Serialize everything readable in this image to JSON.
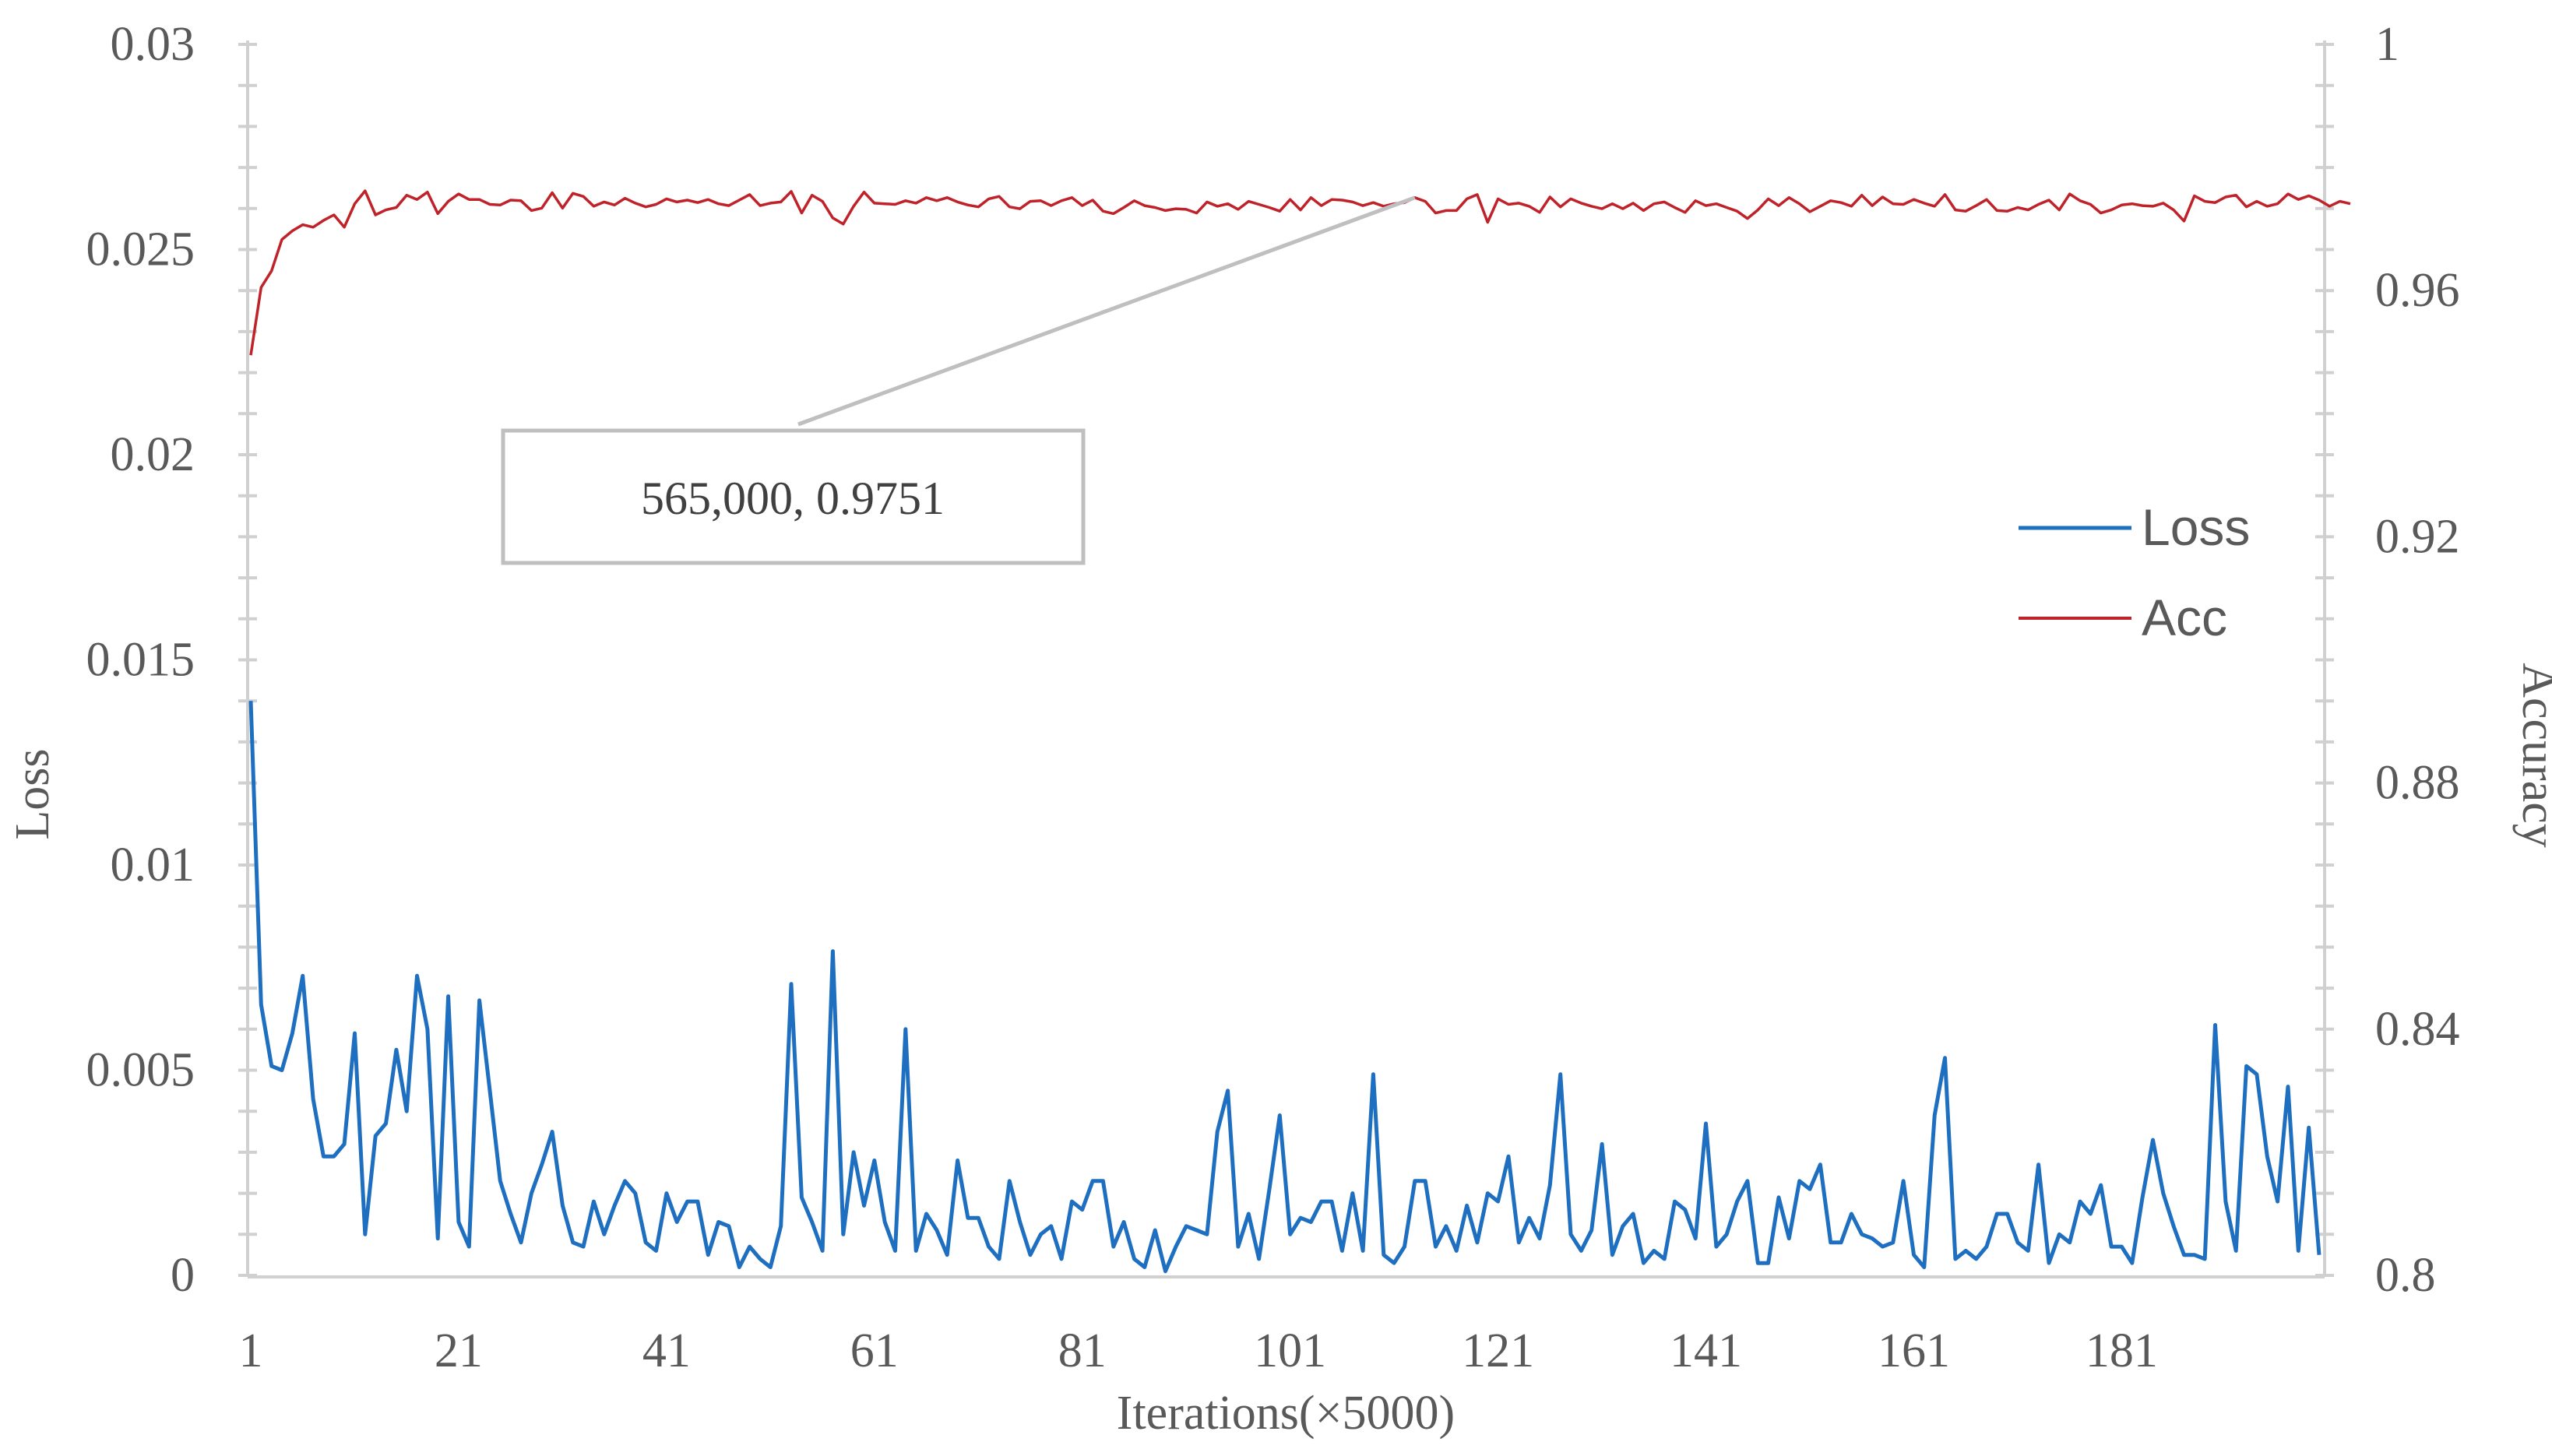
{
  "chart_data": {
    "type": "line",
    "xlabel": "Iterations(×5000)",
    "ylabel_left": "Loss",
    "ylabel_right": "Accuracy",
    "x_range": [
      1,
      200
    ],
    "x_ticks": [
      "1",
      "21",
      "41",
      "61",
      "81",
      "101",
      "121",
      "141",
      "161",
      "181"
    ],
    "ylim_left": [
      0,
      0.03
    ],
    "y_ticks_left": [
      "0",
      "0.005",
      "0.01",
      "0.015",
      "0.02",
      "0.025",
      "0.03"
    ],
    "ylim_right": [
      0.8,
      1.0
    ],
    "y_ticks_right": [
      "0.8",
      "0.84",
      "0.88",
      "0.92",
      "0.96",
      "1"
    ],
    "grid": false,
    "legend_position": "right",
    "annotation": {
      "text": "565,000, 0.9751",
      "x": 113,
      "y": 0.9751
    },
    "colors": {
      "Loss": "#1f6fc1",
      "Acc": "#c0222a"
    },
    "series": [
      {
        "name": "Loss",
        "axis": "left",
        "values": [
          0.014,
          0.0066,
          0.0051,
          0.005,
          0.0059,
          0.0073,
          0.0043,
          0.0029,
          0.0029,
          0.0032,
          0.0059,
          0.001,
          0.0034,
          0.0037,
          0.0055,
          0.004,
          0.0073,
          0.006,
          0.0009,
          0.0068,
          0.0013,
          0.0007,
          0.0067,
          0.0045,
          0.0023,
          0.0015,
          0.0008,
          0.002,
          0.0027,
          0.0035,
          0.0017,
          0.0008,
          0.0007,
          0.0018,
          0.001,
          0.0017,
          0.0023,
          0.002,
          0.0008,
          0.0006,
          0.002,
          0.0013,
          0.0018,
          0.0018,
          0.0005,
          0.0013,
          0.0012,
          0.0002,
          0.0007,
          0.0004,
          0.0002,
          0.0012,
          0.0071,
          0.0019,
          0.0013,
          0.0006,
          0.0079,
          0.001,
          0.003,
          0.0017,
          0.0028,
          0.0013,
          0.0006,
          0.006,
          0.0006,
          0.0015,
          0.0011,
          0.0005,
          0.0028,
          0.0014,
          0.0014,
          0.0007,
          0.0004,
          0.0023,
          0.0013,
          0.0005,
          0.001,
          0.0012,
          0.0004,
          0.0018,
          0.0016,
          0.0023,
          0.0023,
          0.0007,
          0.0013,
          0.0004,
          0.0002,
          0.0011,
          0.0001,
          0.0007,
          0.0012,
          0.0011,
          0.001,
          0.0035,
          0.0045,
          0.0007,
          0.0015,
          0.0004,
          0.0021,
          0.0039,
          0.001,
          0.0014,
          0.0013,
          0.0018,
          0.0018,
          0.0006,
          0.002,
          0.0006,
          0.0049,
          0.0005,
          0.0003,
          0.0007,
          0.0023,
          0.0023,
          0.0007,
          0.0012,
          0.0006,
          0.0017,
          0.0008,
          0.002,
          0.0018,
          0.0029,
          0.0008,
          0.0014,
          0.0009,
          0.0022,
          0.0049,
          0.001,
          0.0006,
          0.0011,
          0.0032,
          0.0005,
          0.0012,
          0.0015,
          0.0003,
          0.0006,
          0.0004,
          0.0018,
          0.0016,
          0.0009,
          0.0037,
          0.0007,
          0.001,
          0.0018,
          0.0023,
          0.0003,
          0.0003,
          0.0019,
          0.0009,
          0.0023,
          0.0021,
          0.0027,
          0.0008,
          0.0008,
          0.0015,
          0.001,
          0.0009,
          0.0007,
          0.0008,
          0.0023,
          0.0005,
          0.0002,
          0.0039,
          0.0053,
          0.0004,
          0.0006,
          0.0004,
          0.0007,
          0.0015,
          0.0015,
          0.0008,
          0.0006,
          0.0027,
          0.0003,
          0.001,
          0.0008,
          0.0018,
          0.0015,
          0.0022,
          0.0007,
          0.0007,
          0.0003,
          0.0019,
          0.0033,
          0.002,
          0.0012,
          0.0005,
          0.0005,
          0.0004,
          0.0061,
          0.0018,
          0.0006,
          0.0051,
          0.0049,
          0.0029,
          0.0018,
          0.0046,
          0.0006,
          0.0036,
          0.0005
        ]
      },
      {
        "name": "Acc",
        "axis": "right",
        "values": [
          0.9495,
          0.9605,
          0.9632,
          0.9683,
          0.9697,
          0.9707,
          0.9703,
          0.9714,
          0.9723,
          0.9703,
          0.9741,
          0.9762,
          0.9723,
          0.9731,
          0.9735,
          0.9755,
          0.9748,
          0.976,
          0.9725,
          0.9745,
          0.9757,
          0.9748,
          0.9748,
          0.974,
          0.9739,
          0.9747,
          0.9746,
          0.973,
          0.9734,
          0.9759,
          0.9734,
          0.9758,
          0.9753,
          0.9737,
          0.9744,
          0.9739,
          0.975,
          0.9742,
          0.9736,
          0.974,
          0.9749,
          0.9744,
          0.9747,
          0.9743,
          0.9748,
          0.9741,
          0.9738,
          0.9747,
          0.9756,
          0.9738,
          0.9742,
          0.9744,
          0.9761,
          0.9726,
          0.9755,
          0.9745,
          0.9718,
          0.9708,
          0.9737,
          0.976,
          0.9742,
          0.9741,
          0.974,
          0.9746,
          0.9742,
          0.9751,
          0.9746,
          0.9751,
          0.9744,
          0.9739,
          0.9736,
          0.9749,
          0.9753,
          0.9736,
          0.9733,
          0.9745,
          0.9746,
          0.9738,
          0.9746,
          0.9751,
          0.9738,
          0.9747,
          0.9729,
          0.9725,
          0.9735,
          0.9746,
          0.9738,
          0.9735,
          0.973,
          0.9733,
          0.9732,
          0.9726,
          0.9744,
          0.9737,
          0.9741,
          0.9732,
          0.9745,
          0.974,
          0.9735,
          0.9729,
          0.9748,
          0.9731,
          0.9751,
          0.9738,
          0.9748,
          0.9747,
          0.9744,
          0.9738,
          0.9743,
          0.9737,
          0.9741,
          0.9743,
          0.9751,
          0.9745,
          0.9726,
          0.973,
          0.973,
          0.9749,
          0.9756,
          0.9711,
          0.9749,
          0.974,
          0.9742,
          0.9737,
          0.9727,
          0.9752,
          0.9736,
          0.9749,
          0.9742,
          0.9737,
          0.9733,
          0.9741,
          0.9733,
          0.9742,
          0.973,
          0.9741,
          0.9744,
          0.9735,
          0.9727,
          0.9746,
          0.9738,
          0.9741,
          0.9735,
          0.9729,
          0.9717,
          0.9731,
          0.9749,
          0.9738,
          0.9751,
          0.9741,
          0.9728,
          0.9737,
          0.9746,
          0.9743,
          0.9737,
          0.9755,
          0.9738,
          0.9752,
          0.9741,
          0.974,
          0.9748,
          0.9742,
          0.9737,
          0.9756,
          0.9731,
          0.9729,
          0.9738,
          0.9748,
          0.973,
          0.9729,
          0.9735,
          0.9731,
          0.974,
          0.9747,
          0.9731,
          0.9757,
          0.9746,
          0.974,
          0.9726,
          0.9731,
          0.9739,
          0.9741,
          0.9738,
          0.9737,
          0.9742,
          0.9731,
          0.9713,
          0.9754,
          0.9745,
          0.9743,
          0.9752,
          0.9755,
          0.9736,
          0.9745,
          0.9737,
          0.9741,
          0.9757,
          0.9748,
          0.9754,
          0.9747,
          0.9737,
          0.9745,
          0.9741
        ]
      }
    ]
  },
  "legend": {
    "items": [
      {
        "label": "Loss"
      },
      {
        "label": "Acc"
      }
    ]
  },
  "annotation_label": "565,000, 0.9751",
  "axes": {
    "xlabel": "Iterations(×5000)",
    "ylabel_left": "Loss",
    "ylabel_right": "Accuracy"
  }
}
